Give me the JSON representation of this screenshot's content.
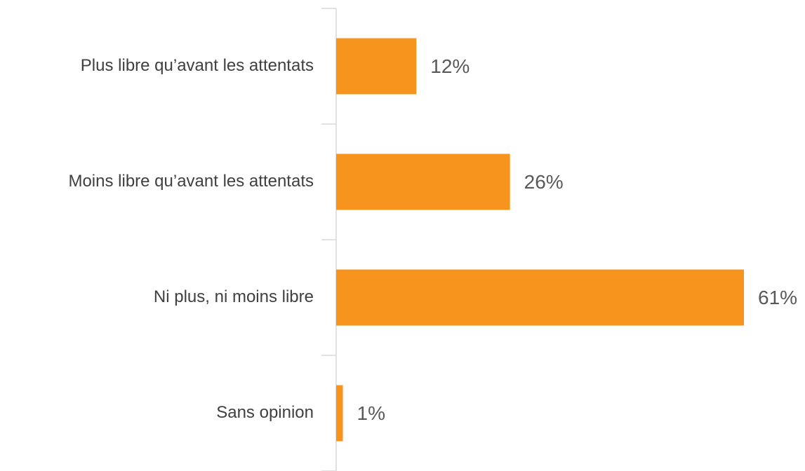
{
  "chart_data": {
    "type": "bar",
    "orientation": "horizontal",
    "categories": [
      "Plus libre qu’avant les attentats",
      "Moins libre qu’avant les attentats",
      "Ni plus, ni moins libre",
      "Sans opinion"
    ],
    "values": [
      12,
      26,
      61,
      1
    ],
    "value_labels": [
      "12%",
      "26%",
      "61%",
      "1%"
    ],
    "color": "#f7941d"
  }
}
